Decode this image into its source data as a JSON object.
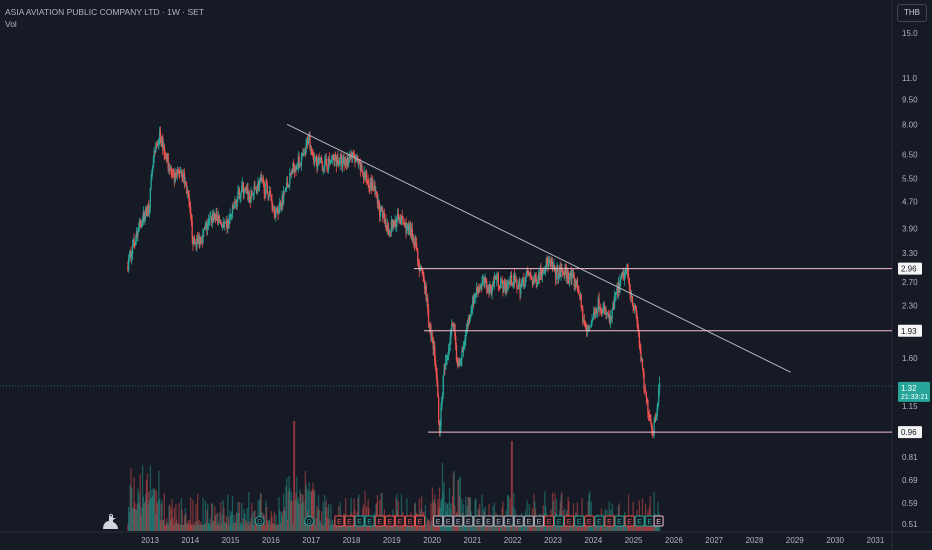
{
  "header": {
    "title": "ASIA AVIATION PUBLIC COMPANY LTD · 1W · SET",
    "volume_label": "Vol"
  },
  "currency_button": "THB",
  "colors": {
    "background": "#161a25",
    "up": "#26a69a",
    "down": "#ef5350",
    "trendline": "#b2b5be",
    "level_line": "#f8bbd0",
    "last_price": "#26a69a",
    "axis_text": "#b2b5be"
  },
  "chart_data": {
    "type": "candlestick",
    "y_scale": "log",
    "ylim": [
      0.5,
      16.5
    ],
    "y_ticks": [
      "15.0",
      "11.0",
      "9.50",
      "8.00",
      "6.50",
      "5.50",
      "4.70",
      "3.90",
      "3.30",
      "2.70",
      "2.30",
      "1.60",
      "1.15",
      "0.81",
      "0.69",
      "0.59",
      "0.51"
    ],
    "x_ticks": [
      "2013",
      "2014",
      "2015",
      "2016",
      "2017",
      "2018",
      "2019",
      "2020",
      "2021",
      "2022",
      "2023",
      "2024",
      "2025",
      "2026",
      "2027",
      "2028",
      "2029",
      "2030",
      "2031"
    ],
    "price_path": [
      {
        "x": 2012.45,
        "close": 3.0
      },
      {
        "x": 2012.6,
        "close": 3.5
      },
      {
        "x": 2012.8,
        "close": 4.1
      },
      {
        "x": 2013.0,
        "close": 4.6
      },
      {
        "x": 2013.1,
        "close": 6.2
      },
      {
        "x": 2013.25,
        "close": 7.4
      },
      {
        "x": 2013.4,
        "close": 6.6
      },
      {
        "x": 2013.6,
        "close": 5.4
      },
      {
        "x": 2013.8,
        "close": 5.9
      },
      {
        "x": 2013.95,
        "close": 5.0
      },
      {
        "x": 2014.1,
        "close": 3.5
      },
      {
        "x": 2014.3,
        "close": 3.7
      },
      {
        "x": 2014.6,
        "close": 4.3
      },
      {
        "x": 2014.9,
        "close": 3.9
      },
      {
        "x": 2015.1,
        "close": 4.5
      },
      {
        "x": 2015.3,
        "close": 5.2
      },
      {
        "x": 2015.5,
        "close": 4.8
      },
      {
        "x": 2015.75,
        "close": 5.4
      },
      {
        "x": 2016.0,
        "close": 4.9
      },
      {
        "x": 2016.15,
        "close": 4.3
      },
      {
        "x": 2016.35,
        "close": 5.0
      },
      {
        "x": 2016.6,
        "close": 6.0
      },
      {
        "x": 2016.85,
        "close": 6.4
      },
      {
        "x": 2016.95,
        "close": 7.4
      },
      {
        "x": 2017.1,
        "close": 6.3
      },
      {
        "x": 2017.35,
        "close": 6.0
      },
      {
        "x": 2017.6,
        "close": 6.3
      },
      {
        "x": 2017.85,
        "close": 6.1
      },
      {
        "x": 2018.0,
        "close": 6.5
      },
      {
        "x": 2018.2,
        "close": 6.0
      },
      {
        "x": 2018.35,
        "close": 5.6
      },
      {
        "x": 2018.55,
        "close": 5.2
      },
      {
        "x": 2018.75,
        "close": 4.3
      },
      {
        "x": 2018.95,
        "close": 3.9
      },
      {
        "x": 2019.2,
        "close": 4.2
      },
      {
        "x": 2019.4,
        "close": 3.9
      },
      {
        "x": 2019.6,
        "close": 3.6
      },
      {
        "x": 2019.7,
        "close": 3.0
      },
      {
        "x": 2019.85,
        "close": 2.6
      },
      {
        "x": 2019.95,
        "close": 2.0
      },
      {
        "x": 2020.05,
        "close": 1.75
      },
      {
        "x": 2020.15,
        "close": 1.3
      },
      {
        "x": 2020.2,
        "close": 0.96
      },
      {
        "x": 2020.3,
        "close": 1.4
      },
      {
        "x": 2020.45,
        "close": 1.8
      },
      {
        "x": 2020.55,
        "close": 2.1
      },
      {
        "x": 2020.65,
        "close": 1.5
      },
      {
        "x": 2020.75,
        "close": 1.6
      },
      {
        "x": 2020.85,
        "close": 1.9
      },
      {
        "x": 2021.0,
        "close": 2.3
      },
      {
        "x": 2021.15,
        "close": 2.6
      },
      {
        "x": 2021.3,
        "close": 2.7
      },
      {
        "x": 2021.45,
        "close": 2.55
      },
      {
        "x": 2021.6,
        "close": 2.8
      },
      {
        "x": 2021.8,
        "close": 2.6
      },
      {
        "x": 2022.0,
        "close": 2.75
      },
      {
        "x": 2022.2,
        "close": 2.6
      },
      {
        "x": 2022.4,
        "close": 2.85
      },
      {
        "x": 2022.55,
        "close": 2.7
      },
      {
        "x": 2022.75,
        "close": 2.95
      },
      {
        "x": 2022.9,
        "close": 3.1
      },
      {
        "x": 2023.1,
        "close": 2.85
      },
      {
        "x": 2023.3,
        "close": 2.9
      },
      {
        "x": 2023.5,
        "close": 2.75
      },
      {
        "x": 2023.65,
        "close": 2.6
      },
      {
        "x": 2023.75,
        "close": 2.15
      },
      {
        "x": 2023.85,
        "close": 1.9
      },
      {
        "x": 2024.0,
        "close": 2.1
      },
      {
        "x": 2024.15,
        "close": 2.35
      },
      {
        "x": 2024.3,
        "close": 2.2
      },
      {
        "x": 2024.45,
        "close": 2.05
      },
      {
        "x": 2024.55,
        "close": 2.4
      },
      {
        "x": 2024.7,
        "close": 2.7
      },
      {
        "x": 2024.85,
        "close": 2.95
      },
      {
        "x": 2024.95,
        "close": 2.5
      },
      {
        "x": 2025.1,
        "close": 2.1
      },
      {
        "x": 2025.2,
        "close": 1.6
      },
      {
        "x": 2025.3,
        "close": 1.25
      },
      {
        "x": 2025.4,
        "close": 1.1
      },
      {
        "x": 2025.5,
        "close": 0.96
      },
      {
        "x": 2025.6,
        "close": 1.15
      },
      {
        "x": 2025.65,
        "close": 1.32
      }
    ],
    "trendline": {
      "start": {
        "x": 2016.4,
        "y": 8.0
      },
      "end": {
        "x": 2028.9,
        "y": 1.45
      }
    },
    "horizontal_levels": [
      {
        "value": 2.96,
        "label": "2.96",
        "x_start": 2019.55
      },
      {
        "value": 1.93,
        "label": "1.93",
        "x_start": 2019.8
      },
      {
        "value": 0.96,
        "label": "0.96",
        "x_start": 2019.9
      }
    ],
    "last_price": {
      "value": 1.32,
      "label": "1.32",
      "countdown": "21:33:21"
    },
    "series": [
      {
        "name": "Vol"
      }
    ]
  }
}
